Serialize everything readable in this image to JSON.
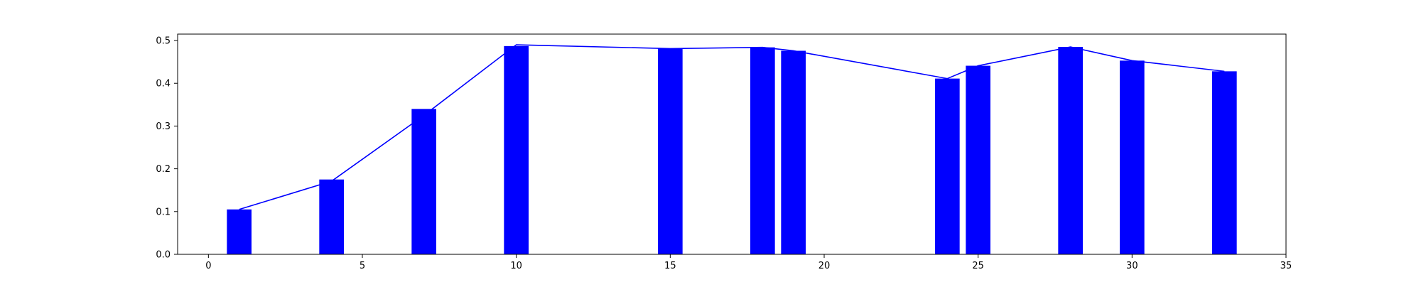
{
  "chart_data": {
    "type": "bar",
    "title": "",
    "xlabel": "",
    "ylabel": "",
    "xlim": [
      -1,
      35
    ],
    "ylim": [
      0,
      0.515
    ],
    "grid": false,
    "bar_width": 0.8,
    "x_ticks": [
      0,
      5,
      10,
      15,
      20,
      25,
      30,
      35
    ],
    "y_ticks": [
      0.0,
      0.1,
      0.2,
      0.3,
      0.4,
      0.5
    ],
    "x_tick_labels": [
      "0",
      "5",
      "10",
      "15",
      "20",
      "25",
      "30",
      "35"
    ],
    "y_tick_labels": [
      "0.0",
      "0.1",
      "0.2",
      "0.3",
      "0.4",
      "0.5"
    ],
    "x": [
      1,
      4,
      7,
      10,
      15,
      18,
      19,
      24,
      25,
      28,
      30,
      33
    ],
    "series": [
      {
        "name": "bars",
        "type": "bar",
        "color": "#0000ff",
        "values": [
          0.105,
          0.175,
          0.34,
          0.487,
          0.481,
          0.484,
          0.476,
          0.411,
          0.441,
          0.485,
          0.453,
          0.428
        ]
      },
      {
        "name": "line",
        "type": "line",
        "color": "#0000ff",
        "values": [
          0.105,
          0.171,
          0.325,
          0.49,
          0.481,
          0.484,
          0.476,
          0.411,
          0.441,
          0.485,
          0.453,
          0.428
        ]
      }
    ]
  }
}
